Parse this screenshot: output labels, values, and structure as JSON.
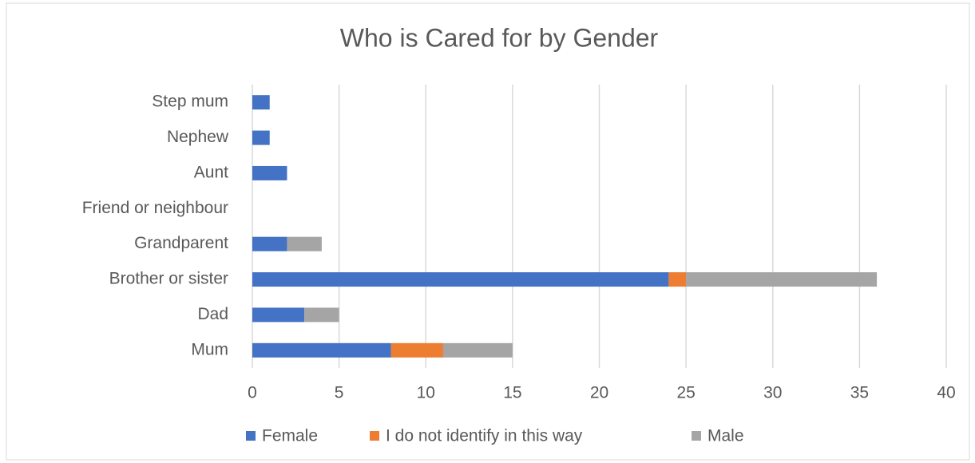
{
  "chart_data": {
    "type": "bar",
    "orientation": "horizontal",
    "stacked": true,
    "title": "Who is Cared for by Gender",
    "categories": [
      "Mum",
      "Dad",
      "Brother or sister",
      "Grandparent",
      "Friend or neighbour",
      "Aunt",
      "Nephew",
      "Step mum"
    ],
    "series": [
      {
        "name": "Female",
        "color": "#4472c4",
        "values": [
          8,
          3,
          24,
          2,
          0,
          2,
          1,
          1
        ]
      },
      {
        "name": "I do not identify in this way",
        "color": "#ed7d31",
        "values": [
          3,
          0,
          1,
          0,
          0,
          0,
          0,
          0
        ]
      },
      {
        "name": "Male",
        "color": "#a5a5a5",
        "values": [
          4,
          2,
          11,
          2,
          0,
          0,
          0,
          0
        ]
      }
    ],
    "xlim": [
      0,
      40
    ],
    "xticks": [
      0,
      5,
      10,
      15,
      20,
      25,
      30,
      35,
      40
    ],
    "grid": true,
    "legend": "bottom"
  }
}
